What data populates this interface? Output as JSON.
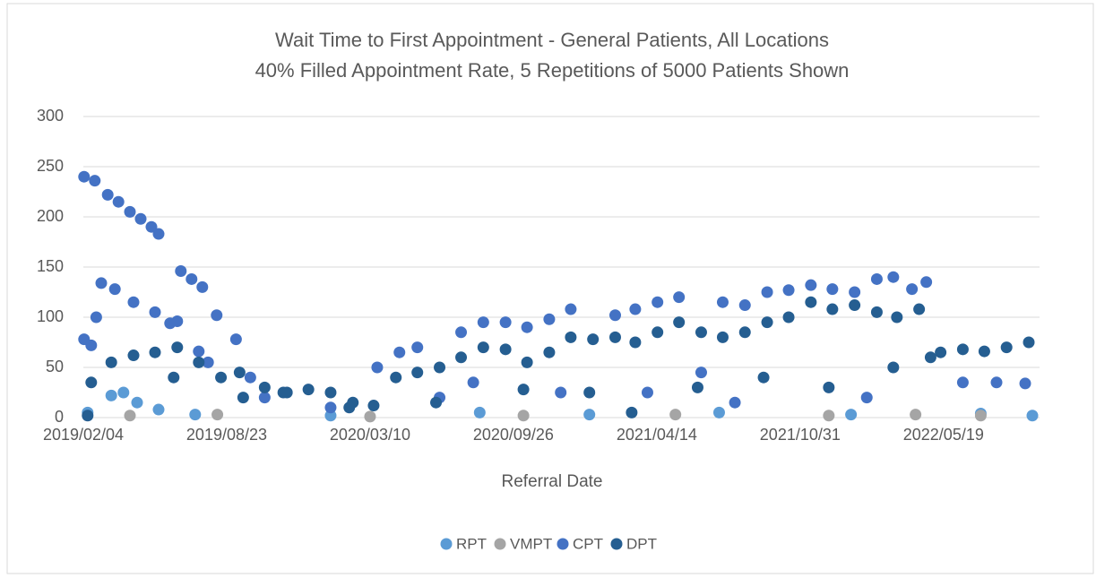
{
  "chart_data": {
    "type": "scatter",
    "title": "Wait Time to First Appointment - General Patients, All Locations",
    "subtitle": "40% Filled Appointment Rate, 5 Repetitions of 5000 Patients Shown",
    "x_label": "Referral Date",
    "xlim": [
      "2019/02/04",
      "2022/09/30"
    ],
    "xticks": [
      "2019/02/04",
      "2019/08/23",
      "2020/03/10",
      "2020/09/26",
      "2021/04/14",
      "2021/10/31",
      "2022/05/19"
    ],
    "ylim": [
      0,
      300
    ],
    "yticks": [
      0,
      50,
      100,
      150,
      200,
      250,
      300
    ],
    "grid": true,
    "legend": "bottom",
    "series": [
      {
        "name": "RPT",
        "color": "#5b9bd5",
        "x": [
          "2019/02/10",
          "2019/03/15",
          "2019/04/01",
          "2019/04/20",
          "2019/05/20",
          "2019/07/10",
          "2020/01/15",
          "2020/08/10",
          "2021/01/10",
          "2021/07/10",
          "2022/01/10",
          "2022/07/10",
          "2022/09/20"
        ],
        "values": [
          5,
          22,
          25,
          15,
          8,
          3,
          2,
          5,
          3,
          5,
          3,
          4,
          2
        ]
      },
      {
        "name": "VMPT",
        "color": "#a5a5a5",
        "x": [
          "2019/04/10",
          "2019/08/10",
          "2020/03/10",
          "2020/10/10",
          "2021/05/10",
          "2021/12/10",
          "2022/04/10",
          "2022/07/10"
        ],
        "values": [
          2,
          3,
          1,
          2,
          3,
          2,
          3,
          2
        ]
      },
      {
        "name": "CPT",
        "color": "#4472c4",
        "x": [
          "2019/02/05",
          "2019/02/20",
          "2019/03/10",
          "2019/03/25",
          "2019/04/10",
          "2019/04/25",
          "2019/05/10",
          "2019/05/20",
          "2019/03/01",
          "2019/03/20",
          "2019/04/15",
          "2019/05/15",
          "2019/06/15",
          "2019/06/20",
          "2019/07/05",
          "2019/07/20",
          "2019/08/09",
          "2019/02/05",
          "2019/02/15",
          "2019/02/22",
          "2019/06/05",
          "2019/07/15",
          "2019/07/28",
          "2019/09/05",
          "2019/09/25",
          "2020/03/20",
          "2020/04/20",
          "2020/05/15",
          "2020/07/15",
          "2020/08/15",
          "2020/09/15",
          "2020/10/15",
          "2020/11/15",
          "2020/12/15",
          "2021/02/15",
          "2021/03/15",
          "2021/04/15",
          "2021/05/15",
          "2021/07/15",
          "2021/08/15",
          "2021/09/15",
          "2021/10/15",
          "2021/11/15",
          "2021/12/15",
          "2022/01/15",
          "2022/02/15",
          "2022/03/10",
          "2022/04/05",
          "2022/04/25",
          "2019/10/15",
          "2020/01/15",
          "2020/06/15",
          "2020/08/01",
          "2020/12/01",
          "2021/04/01",
          "2021/06/15",
          "2021/08/01",
          "2022/02/01",
          "2022/06/15",
          "2022/08/01",
          "2022/09/10"
        ],
        "values": [
          240,
          236,
          222,
          215,
          205,
          198,
          190,
          183,
          134,
          128,
          115,
          105,
          96,
          146,
          138,
          130,
          102,
          78,
          72,
          100,
          94,
          66,
          55,
          78,
          40,
          50,
          65,
          70,
          85,
          95,
          95,
          90,
          98,
          108,
          102,
          108,
          115,
          120,
          115,
          112,
          125,
          127,
          132,
          128,
          125,
          138,
          140,
          128,
          135,
          20,
          10,
          20,
          35,
          25,
          25,
          45,
          15,
          20,
          35,
          35,
          34
        ]
      },
      {
        "name": "DPT",
        "color": "#255e91",
        "x": [
          "2019/02/15",
          "2019/03/15",
          "2019/04/15",
          "2019/05/15",
          "2019/06/15",
          "2019/07/15",
          "2019/08/15",
          "2019/09/15",
          "2019/10/15",
          "2019/11/15",
          "2019/12/15",
          "2020/01/15",
          "2020/02/15",
          "2020/03/15",
          "2020/04/15",
          "2020/05/15",
          "2020/06/15",
          "2020/07/15",
          "2020/08/15",
          "2020/09/15",
          "2020/10/15",
          "2020/11/15",
          "2020/12/15",
          "2021/01/15",
          "2021/02/15",
          "2021/03/15",
          "2021/04/15",
          "2021/05/15",
          "2021/06/15",
          "2021/07/15",
          "2021/08/15",
          "2021/09/15",
          "2021/10/15",
          "2021/11/15",
          "2021/12/15",
          "2022/01/15",
          "2022/02/15",
          "2022/03/15",
          "2022/04/15",
          "2022/05/15",
          "2022/06/15",
          "2022/07/15",
          "2022/08/15",
          "2022/09/15",
          "2019/02/10",
          "2019/06/10",
          "2019/09/10",
          "2019/11/10",
          "2020/02/10",
          "2020/06/10",
          "2020/10/10",
          "2021/01/10",
          "2021/03/10",
          "2021/06/10",
          "2021/09/10",
          "2021/12/10",
          "2022/03/10",
          "2022/05/01"
        ],
        "values": [
          35,
          55,
          62,
          65,
          70,
          55,
          40,
          20,
          30,
          25,
          28,
          25,
          15,
          12,
          40,
          45,
          50,
          60,
          70,
          68,
          55,
          65,
          80,
          78,
          80,
          75,
          85,
          95,
          85,
          80,
          85,
          95,
          100,
          115,
          108,
          112,
          105,
          100,
          108,
          65,
          68,
          66,
          70,
          75,
          2,
          40,
          45,
          25,
          10,
          15,
          28,
          25,
          5,
          30,
          40,
          30,
          50,
          60
        ]
      }
    ]
  }
}
